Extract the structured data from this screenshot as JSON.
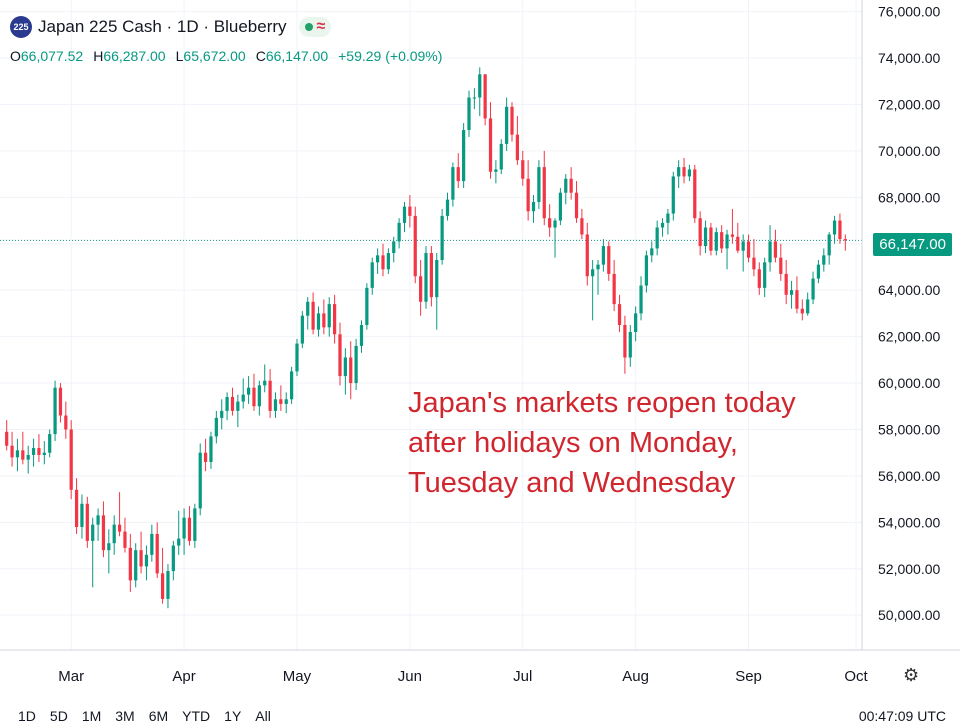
{
  "header": {
    "symbol_badge": "225",
    "title": "Japan 225 Cash · 1D · Blueberry",
    "status_icon": "live-dot-icon",
    "wave_icon": "≈"
  },
  "ohlc": {
    "o_label": "O",
    "o": "66,077.52",
    "h_label": "H",
    "h": "66,287.00",
    "l_label": "L",
    "l": "65,672.00",
    "c_label": "C",
    "c": "66,147.00",
    "change": "+59.29 (+0.09%)"
  },
  "annotation": "Japan's markets reopen today\nafter holidays on Monday,\nTuesday and Wednesday",
  "last_price_label": "66,147.00",
  "range_buttons": [
    "1D",
    "5D",
    "1M",
    "3M",
    "6M",
    "YTD",
    "1Y",
    "All"
  ],
  "clock": "00:47:09 UTC",
  "colors": {
    "up": "#089981",
    "down": "#f23645",
    "annotation": "#d0262e"
  },
  "chart_data": {
    "type": "candlestick",
    "y_ticks": [
      "76,000.00",
      "74,000.00",
      "72,000.00",
      "70,000.00",
      "68,000.00",
      "66,000.00",
      "64,000.00",
      "62,000.00",
      "60,000.00",
      "58,000.00",
      "56,000.00",
      "54,000.00",
      "52,000.00",
      "50,000.00"
    ],
    "y_tick_values": [
      76000,
      74000,
      72000,
      70000,
      68000,
      66000,
      64000,
      62000,
      60000,
      58000,
      56000,
      54000,
      52000,
      50000
    ],
    "x_ticks": [
      "Mar",
      "Apr",
      "May",
      "Jun",
      "Jul",
      "Aug",
      "Sep",
      "Oct"
    ],
    "x_tick_index": [
      12,
      33,
      54,
      75,
      96,
      117,
      138,
      158
    ],
    "ylim": [
      48500,
      76500
    ],
    "last_price": 66147,
    "candles": [
      [
        57900,
        58400,
        57100,
        57300
      ],
      [
        57300,
        57900,
        56400,
        56800
      ],
      [
        56800,
        57600,
        56200,
        57100
      ],
      [
        57100,
        57900,
        56500,
        56700
      ],
      [
        56700,
        57300,
        56100,
        56900
      ],
      [
        56900,
        57600,
        56400,
        57200
      ],
      [
        57200,
        57800,
        56600,
        56900
      ],
      [
        56900,
        57500,
        56500,
        57000
      ],
      [
        57000,
        58000,
        56800,
        57800
      ],
      [
        57800,
        60100,
        57500,
        59800
      ],
      [
        59800,
        60000,
        58300,
        58600
      ],
      [
        58600,
        59200,
        57600,
        58000
      ],
      [
        58000,
        58400,
        55000,
        55400
      ],
      [
        55400,
        55900,
        53500,
        53800
      ],
      [
        53800,
        55200,
        53300,
        54800
      ],
      [
        54800,
        55100,
        52900,
        53200
      ],
      [
        53200,
        54200,
        51200,
        53900
      ],
      [
        53900,
        54600,
        53200,
        54300
      ],
      [
        54300,
        54900,
        52500,
        52800
      ],
      [
        52800,
        53700,
        51800,
        53100
      ],
      [
        53100,
        54300,
        52600,
        53900
      ],
      [
        53900,
        55300,
        53400,
        53600
      ],
      [
        53600,
        54200,
        52700,
        52900
      ],
      [
        52900,
        53500,
        51000,
        51500
      ],
      [
        51500,
        53100,
        51200,
        52800
      ],
      [
        52800,
        53600,
        51800,
        52100
      ],
      [
        52100,
        53000,
        51500,
        52600
      ],
      [
        52600,
        53900,
        52300,
        53500
      ],
      [
        53500,
        54000,
        51600,
        51800
      ],
      [
        51800,
        52900,
        50500,
        50700
      ],
      [
        50700,
        52200,
        50300,
        51900
      ],
      [
        51900,
        53200,
        51500,
        53000
      ],
      [
        53000,
        54500,
        52600,
        53300
      ],
      [
        53300,
        54600,
        52600,
        54200
      ],
      [
        54200,
        54700,
        53000,
        53200
      ],
      [
        53200,
        54800,
        52900,
        54600
      ],
      [
        54600,
        57400,
        54300,
        57000
      ],
      [
        57000,
        57600,
        56200,
        56600
      ],
      [
        56600,
        57900,
        56300,
        57700
      ],
      [
        57700,
        58800,
        57400,
        58500
      ],
      [
        58500,
        59300,
        58000,
        58800
      ],
      [
        58800,
        59600,
        58400,
        59400
      ],
      [
        59400,
        59800,
        58600,
        58800
      ],
      [
        58800,
        59500,
        58100,
        59200
      ],
      [
        59200,
        60200,
        58900,
        59500
      ],
      [
        59500,
        60300,
        59100,
        59800
      ],
      [
        59800,
        60400,
        58800,
        59000
      ],
      [
        59000,
        60100,
        58600,
        59900
      ],
      [
        59900,
        60800,
        59600,
        60100
      ],
      [
        60100,
        60600,
        58500,
        58800
      ],
      [
        58800,
        59600,
        58500,
        59300
      ],
      [
        59300,
        59900,
        58800,
        59100
      ],
      [
        59100,
        59600,
        58700,
        59300
      ],
      [
        59300,
        60700,
        59100,
        60500
      ],
      [
        60500,
        61900,
        60300,
        61700
      ],
      [
        61700,
        63100,
        61500,
        62900
      ],
      [
        62900,
        63700,
        62300,
        63500
      ],
      [
        63500,
        63900,
        62100,
        62300
      ],
      [
        62300,
        63300,
        62000,
        63000
      ],
      [
        63000,
        63600,
        62100,
        62400
      ],
      [
        62400,
        63700,
        62000,
        63400
      ],
      [
        63400,
        63800,
        61700,
        62100
      ],
      [
        62100,
        62600,
        59900,
        60300
      ],
      [
        60300,
        61500,
        59500,
        61100
      ],
      [
        61100,
        61800,
        59300,
        60000
      ],
      [
        60000,
        61900,
        59700,
        61600
      ],
      [
        61600,
        62700,
        61300,
        62500
      ],
      [
        62500,
        64300,
        62300,
        64100
      ],
      [
        64100,
        65400,
        63800,
        65200
      ],
      [
        65200,
        65800,
        64700,
        65500
      ],
      [
        65500,
        66000,
        64600,
        64900
      ],
      [
        64900,
        65800,
        64700,
        65600
      ],
      [
        65600,
        66300,
        65200,
        66100
      ],
      [
        66100,
        67100,
        65800,
        66900
      ],
      [
        66900,
        67800,
        66500,
        67600
      ],
      [
        67600,
        68100,
        66700,
        67200
      ],
      [
        67200,
        67600,
        64300,
        64600
      ],
      [
        64600,
        65300,
        62900,
        63500
      ],
      [
        63500,
        65900,
        63200,
        65600
      ],
      [
        65600,
        65900,
        63300,
        63700
      ],
      [
        63700,
        65600,
        62300,
        65300
      ],
      [
        65300,
        67500,
        65100,
        67200
      ],
      [
        67200,
        68200,
        67000,
        67900
      ],
      [
        67900,
        69500,
        67600,
        69300
      ],
      [
        69300,
        69900,
        68400,
        68700
      ],
      [
        68700,
        71200,
        68400,
        70900
      ],
      [
        70900,
        72600,
        70600,
        72300
      ],
      [
        72300,
        72700,
        71800,
        72300
      ],
      [
        72300,
        73600,
        71500,
        73300
      ],
      [
        73300,
        73300,
        71100,
        71400
      ],
      [
        71400,
        72100,
        68800,
        69100
      ],
      [
        69100,
        69600,
        68600,
        69200
      ],
      [
        69200,
        70500,
        69000,
        70300
      ],
      [
        70300,
        72300,
        70000,
        71900
      ],
      [
        71900,
        72100,
        70400,
        70700
      ],
      [
        70700,
        71500,
        69400,
        69600
      ],
      [
        69600,
        70000,
        68500,
        68800
      ],
      [
        68800,
        69600,
        67000,
        67400
      ],
      [
        67400,
        68100,
        66900,
        67800
      ],
      [
        67800,
        69600,
        67500,
        69300
      ],
      [
        69300,
        70000,
        66800,
        67100
      ],
      [
        67100,
        67700,
        66300,
        66700
      ],
      [
        66700,
        67100,
        65400,
        67000
      ],
      [
        67000,
        68400,
        66800,
        68200
      ],
      [
        68200,
        69000,
        67700,
        68800
      ],
      [
        68800,
        69300,
        67900,
        68200
      ],
      [
        68200,
        68700,
        66900,
        67100
      ],
      [
        67100,
        67500,
        66200,
        66400
      ],
      [
        66400,
        66900,
        64200,
        64600
      ],
      [
        64600,
        65300,
        62700,
        64900
      ],
      [
        64900,
        65300,
        63800,
        65100
      ],
      [
        65100,
        66200,
        64800,
        65900
      ],
      [
        65900,
        66100,
        64400,
        64700
      ],
      [
        64700,
        65300,
        63100,
        63400
      ],
      [
        63400,
        63800,
        62200,
        62500
      ],
      [
        62500,
        62900,
        60400,
        61100
      ],
      [
        61100,
        62500,
        60700,
        62200
      ],
      [
        62200,
        63300,
        61800,
        63000
      ],
      [
        63000,
        64600,
        62700,
        64200
      ],
      [
        64200,
        65700,
        63900,
        65500
      ],
      [
        65500,
        66100,
        65200,
        65800
      ],
      [
        65800,
        67000,
        65500,
        66700
      ],
      [
        66700,
        67100,
        66300,
        66900
      ],
      [
        66900,
        67500,
        66400,
        67300
      ],
      [
        67300,
        69100,
        67000,
        68900
      ],
      [
        68900,
        69600,
        68400,
        69300
      ],
      [
        69300,
        69700,
        68600,
        68900
      ],
      [
        68900,
        69400,
        68700,
        69200
      ],
      [
        69200,
        69400,
        66900,
        67100
      ],
      [
        67100,
        67400,
        65500,
        65900
      ],
      [
        65900,
        67000,
        65600,
        66700
      ],
      [
        66700,
        66900,
        65500,
        65700
      ],
      [
        65700,
        66700,
        65500,
        66500
      ],
      [
        66500,
        66800,
        65600,
        65800
      ],
      [
        65800,
        66600,
        64900,
        66400
      ],
      [
        66400,
        67500,
        66000,
        66300
      ],
      [
        66300,
        66900,
        65600,
        65700
      ],
      [
        65700,
        66400,
        64800,
        66100
      ],
      [
        66100,
        66400,
        65200,
        65400
      ],
      [
        65400,
        66200,
        64600,
        64900
      ],
      [
        64900,
        65200,
        63800,
        64100
      ],
      [
        64100,
        65400,
        63700,
        65200
      ],
      [
        65200,
        66800,
        64800,
        66100
      ],
      [
        66100,
        66600,
        65200,
        65400
      ],
      [
        65400,
        66000,
        64400,
        64700
      ],
      [
        64700,
        65300,
        63400,
        63800
      ],
      [
        63800,
        64400,
        63200,
        64000
      ],
      [
        64000,
        64600,
        63000,
        63200
      ],
      [
        63200,
        63600,
        62700,
        63000
      ],
      [
        63000,
        63900,
        62900,
        63600
      ],
      [
        63600,
        64800,
        63400,
        64500
      ],
      [
        64500,
        65300,
        64300,
        65100
      ],
      [
        65100,
        65800,
        64800,
        65500
      ],
      [
        65500,
        66500,
        65100,
        66400
      ],
      [
        66400,
        67200,
        66000,
        67000
      ],
      [
        67000,
        67300,
        66000,
        66200
      ],
      [
        66200,
        66400,
        65700,
        66147
      ]
    ]
  }
}
